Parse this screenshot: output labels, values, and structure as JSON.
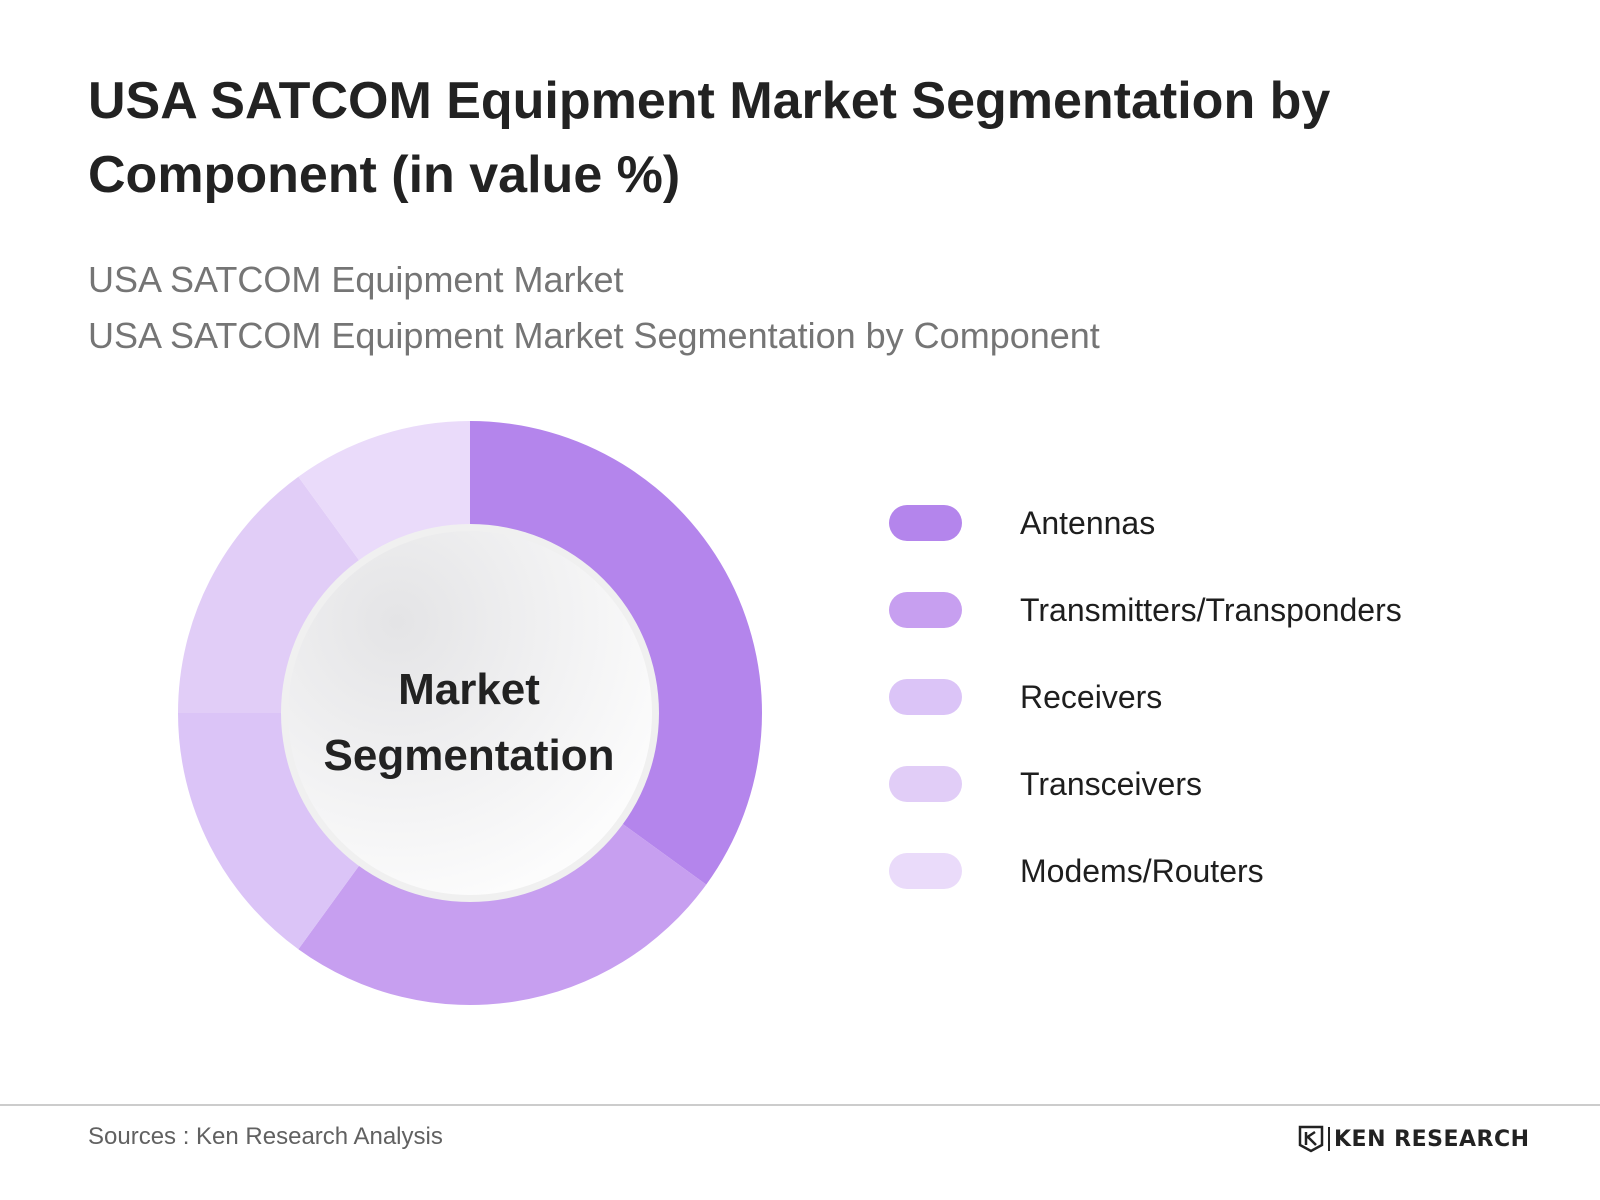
{
  "title": "USA SATCOM Equipment Market Segmentation by Component (in value %)",
  "subtitles": [
    "USA SATCOM Equipment Market",
    "USA SATCOM Equipment Market Segmentation by Component"
  ],
  "center_label": "Market Segmentation",
  "footer": {
    "sources": "Sources : Ken Research Analysis",
    "logo_text": "KEN RESEARCH"
  },
  "chart_data": {
    "type": "pie",
    "donut": true,
    "legend_position": "right",
    "labels": [
      "Antennas",
      "Transmitters/Transponders",
      "Receivers",
      "Transceivers",
      "Modems/Routers"
    ],
    "values": [
      35,
      25,
      15,
      15,
      10
    ],
    "colors": [
      "#b485ec",
      "#c79ff0",
      "#dbc4f7",
      "#e1cdf7",
      "#eadbfa"
    ]
  }
}
